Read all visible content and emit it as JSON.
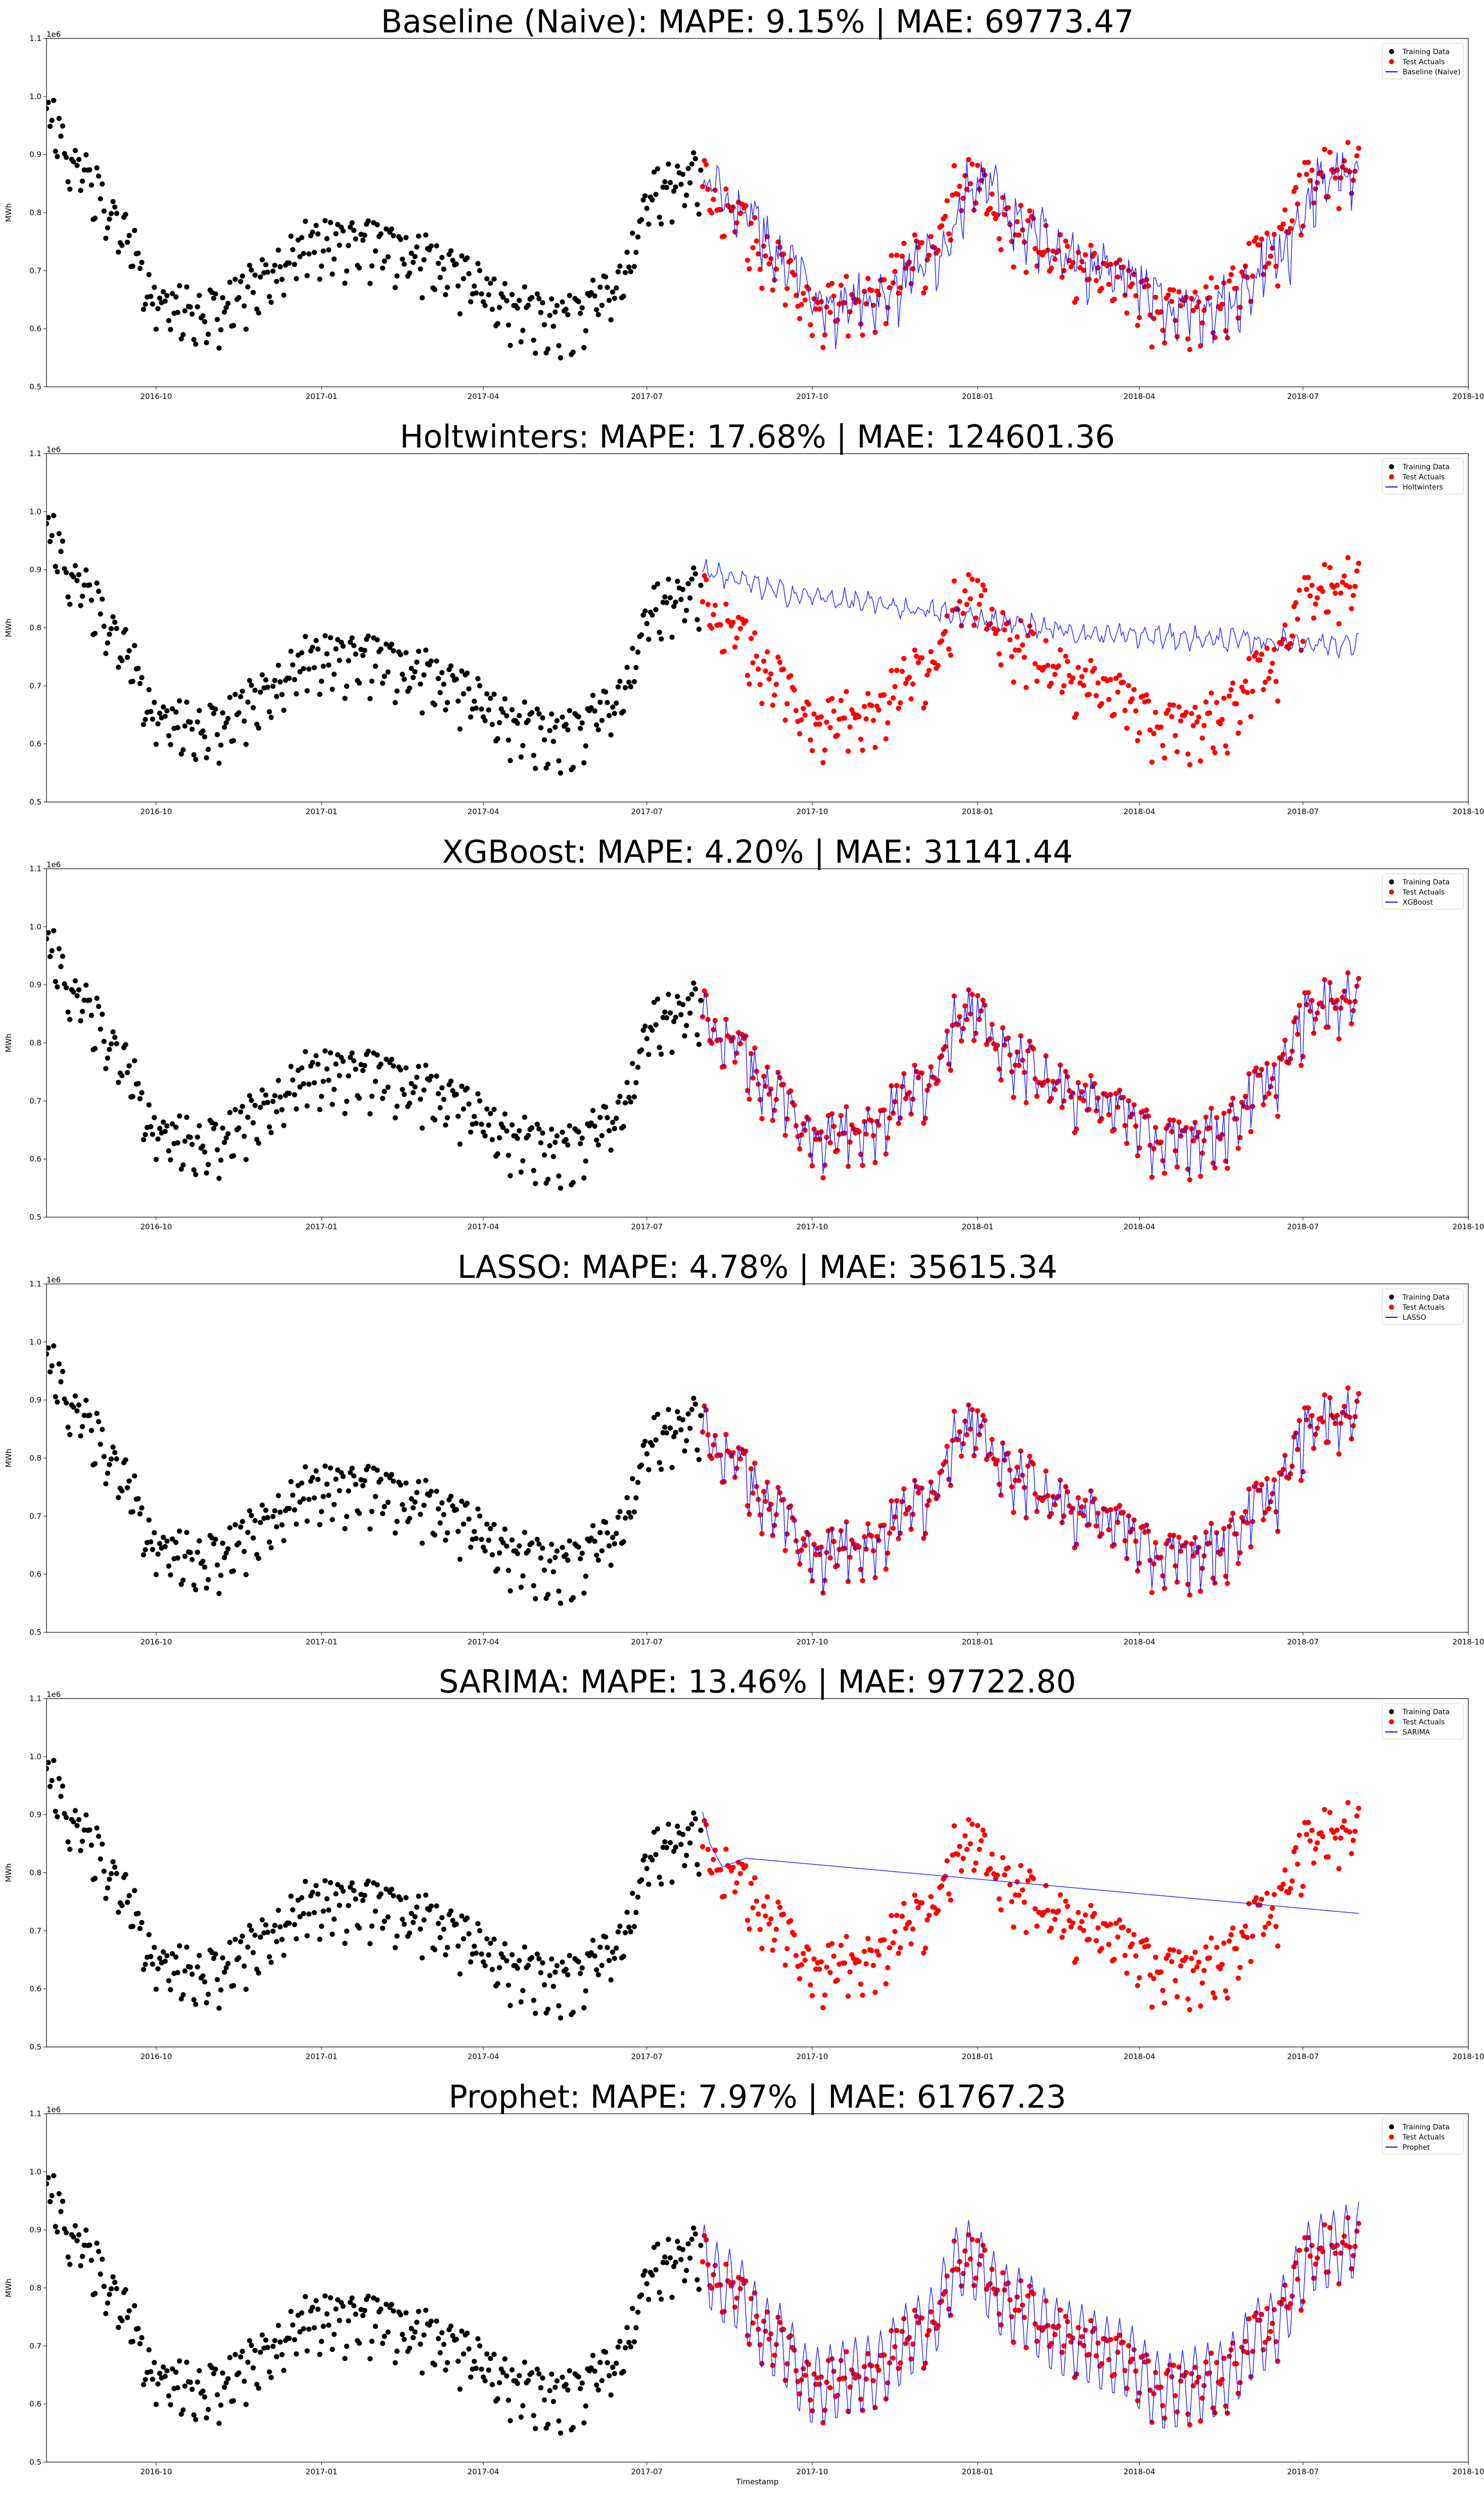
{
  "figure": {
    "xlabel": "Timestamp",
    "x_tick_labels": [
      "2016-10",
      "2017-01",
      "2017-04",
      "2017-07",
      "2017-10",
      "2018-01",
      "2018-04",
      "2018-07",
      "2018-10"
    ],
    "x_ticks": [
      "2016-10-01",
      "2017-01-01",
      "2017-04-01",
      "2017-07-01",
      "2017-10-01",
      "2018-01-01",
      "2018-04-01",
      "2018-07-01",
      "2018-10-01"
    ],
    "y_tick_labels": [
      "0.5",
      "0.6",
      "0.7",
      "0.8",
      "0.9",
      "1.0",
      "1.1"
    ],
    "y_offset_label": "1e6",
    "colors": {
      "training": "#000000",
      "test": "#ff0000",
      "forecast": "#0000ff"
    }
  },
  "chart_data": [
    {
      "type": "scatter",
      "title": "Baseline (Naive): MAPE: 9.15% | MAE: 69773.47",
      "ylabel": "MWh",
      "xlim": [
        "2016-08-01",
        "2018-10-01"
      ],
      "ylim": [
        500000,
        1100000
      ],
      "legend": {
        "position": "top-right",
        "entries": [
          "Training Data",
          "Test Actuals",
          "Baseline (Naive)"
        ]
      },
      "train_range": [
        "2016-08-01",
        "2017-08-01"
      ],
      "test_range": [
        "2017-08-01",
        "2018-08-01"
      ],
      "forecast": {
        "name": "Baseline (Naive)",
        "kind": "tracking",
        "fit": 0.82,
        "lag": 7,
        "amp": 1.15
      }
    },
    {
      "type": "scatter",
      "title": "Holtwinters: MAPE: 17.68% | MAE: 124601.36",
      "ylabel": "MWh",
      "xlim": [
        "2016-08-01",
        "2018-10-01"
      ],
      "ylim": [
        500000,
        1100000
      ],
      "legend": {
        "position": "top-right",
        "entries": [
          "Training Data",
          "Test Actuals",
          "Holtwinters"
        ]
      },
      "train_range": [
        "2016-08-01",
        "2017-08-01"
      ],
      "test_range": [
        "2017-08-01",
        "2018-08-01"
      ],
      "forecast": {
        "name": "Holtwinters",
        "kind": "decay",
        "points": [
          [
            "2017-08-01",
            900000
          ],
          [
            "2017-09-15",
            860000
          ],
          [
            "2017-12-01",
            830000
          ],
          [
            "2018-03-01",
            790000
          ],
          [
            "2018-08-01",
            770000
          ]
        ],
        "wiggle": 22000
      }
    },
    {
      "type": "scatter",
      "title": "XGBoost: MAPE: 4.20% | MAE: 31141.44",
      "ylabel": "MWh",
      "xlim": [
        "2016-08-01",
        "2018-10-01"
      ],
      "ylim": [
        500000,
        1100000
      ],
      "legend": {
        "position": "top-right",
        "entries": [
          "Training Data",
          "Test Actuals",
          "XGBoost"
        ]
      },
      "train_range": [
        "2016-08-01",
        "2017-08-01"
      ],
      "test_range": [
        "2017-08-01",
        "2018-08-01"
      ],
      "forecast": {
        "name": "XGBoost",
        "kind": "tracking",
        "fit": 0.95,
        "lag": 0,
        "amp": 1.0
      }
    },
    {
      "type": "scatter",
      "title": "LASSO: MAPE: 4.78% | MAE: 35615.34",
      "ylabel": "MWh",
      "xlim": [
        "2016-08-01",
        "2018-10-01"
      ],
      "ylim": [
        500000,
        1100000
      ],
      "legend": {
        "position": "top-right",
        "entries": [
          "Training Data",
          "Test Actuals",
          "LASSO"
        ]
      },
      "train_range": [
        "2016-08-01",
        "2017-08-01"
      ],
      "test_range": [
        "2017-08-01",
        "2018-08-01"
      ],
      "forecast": {
        "name": "LASSO",
        "kind": "tracking",
        "fit": 0.93,
        "lag": 0,
        "amp": 1.05
      }
    },
    {
      "type": "scatter",
      "title": "SARIMA: MAPE: 13.46% | MAE: 97722.80",
      "ylabel": "MWh",
      "xlim": [
        "2016-08-01",
        "2018-10-01"
      ],
      "ylim": [
        500000,
        1100000
      ],
      "legend": {
        "position": "top-right",
        "entries": [
          "Training Data",
          "Test Actuals",
          "SARIMA"
        ]
      },
      "train_range": [
        "2016-08-01",
        "2017-08-01"
      ],
      "test_range": [
        "2017-08-01",
        "2018-08-01"
      ],
      "forecast": {
        "name": "SARIMA",
        "kind": "line",
        "points": [
          [
            "2017-08-01",
            905000
          ],
          [
            "2017-08-05",
            850000
          ],
          [
            "2017-08-12",
            810000
          ],
          [
            "2017-08-25",
            825000
          ],
          [
            "2018-08-01",
            730000
          ]
        ],
        "wiggle": 0
      }
    },
    {
      "type": "scatter",
      "title": "Prophet: MAPE: 7.97% | MAE: 61767.23",
      "ylabel": "MWh",
      "xlim": [
        "2016-08-01",
        "2018-10-01"
      ],
      "ylim": [
        500000,
        1100000
      ],
      "legend": {
        "position": "top-right",
        "entries": [
          "Training Data",
          "Test Actuals",
          "Prophet"
        ]
      },
      "train_range": [
        "2016-08-01",
        "2017-08-01"
      ],
      "test_range": [
        "2017-08-01",
        "2018-08-01"
      ],
      "forecast": {
        "name": "Prophet",
        "kind": "seasonal",
        "weekly_amp": 85000
      }
    }
  ]
}
